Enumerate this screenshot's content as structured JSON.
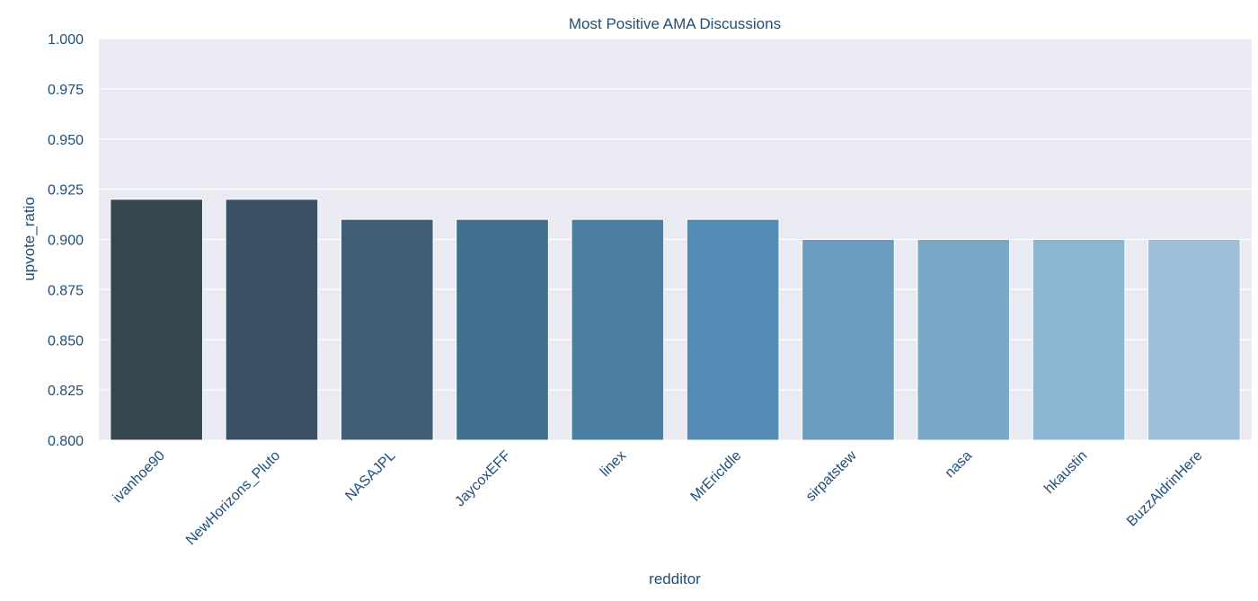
{
  "chart_data": {
    "type": "bar",
    "title": "Most Positive AMA Discussions",
    "xlabel": "redditor",
    "ylabel": "upvote_ratio",
    "ylim": [
      0.8,
      1.0
    ],
    "yticks": [
      "0.800",
      "0.825",
      "0.850",
      "0.875",
      "0.900",
      "0.925",
      "0.950",
      "0.975",
      "1.000"
    ],
    "categories": [
      "ivanhoe90",
      "NewHorizons_Pluto",
      "NASAJPL",
      "JaycoxEFF",
      "linex",
      "MrEricIdle",
      "sirpatstew",
      "nasa",
      "hkaustin",
      "BuzzAldrinHere"
    ],
    "values": [
      0.92,
      0.92,
      0.91,
      0.91,
      0.91,
      0.91,
      0.9,
      0.9,
      0.9,
      0.9
    ],
    "colors": [
      "#37474f",
      "#3a5165",
      "#415e77",
      "#426f90",
      "#4a7ea3",
      "#548bb5",
      "#6a9cbf",
      "#7aa9c8",
      "#8bb5d0",
      "#9cc0d7"
    ],
    "grid": true,
    "legend": "none"
  }
}
